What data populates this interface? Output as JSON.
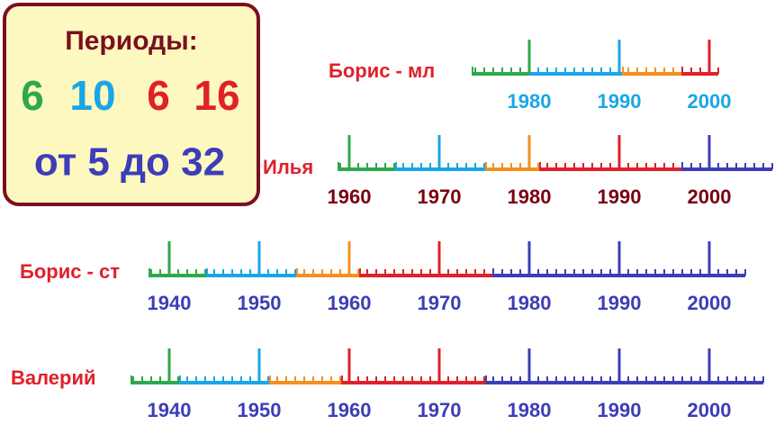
{
  "box": {
    "title": "Периоды:",
    "periods": [
      "6",
      "10",
      "6",
      "16"
    ],
    "range": "от 5 до 32"
  },
  "timelines": [
    {
      "name": "Борис - мл",
      "years": [
        1980,
        1990,
        2000
      ],
      "segments": [
        {
          "start": 1973.7,
          "end": 1980,
          "color": "#2ea84a"
        },
        {
          "start": 1980,
          "end": 1990.4,
          "color": "#1aa6e6"
        },
        {
          "start": 1990.4,
          "end": 1997,
          "color": "#f39020"
        },
        {
          "start": 1997,
          "end": 2001,
          "color": "#e0202a"
        }
      ]
    },
    {
      "name": "Илья",
      "years": [
        1960,
        1970,
        1980,
        1990,
        2000
      ],
      "segments": [
        {
          "start": 1958.8,
          "end": 1965.2,
          "color": "#2ea84a"
        },
        {
          "start": 1965.2,
          "end": 1975.2,
          "color": "#1aa6e6"
        },
        {
          "start": 1975.2,
          "end": 1981.2,
          "color": "#f39020"
        },
        {
          "start": 1981.2,
          "end": 1997,
          "color": "#e0202a"
        },
        {
          "start": 1997,
          "end": 2007,
          "color": "#3d3db8"
        }
      ]
    },
    {
      "name": "Борис - ст",
      "years": [
        1940,
        1950,
        1960,
        1970,
        1980,
        1990,
        2000
      ],
      "segments": [
        {
          "start": 1937.8,
          "end": 1944.2,
          "color": "#2ea84a"
        },
        {
          "start": 1944.2,
          "end": 1954.2,
          "color": "#1aa6e6"
        },
        {
          "start": 1954.2,
          "end": 1961.2,
          "color": "#f39020"
        },
        {
          "start": 1961.2,
          "end": 1976,
          "color": "#e0202a"
        },
        {
          "start": 1976,
          "end": 2004,
          "color": "#3d3db8"
        }
      ]
    },
    {
      "name": "Валерий",
      "years": [
        1940,
        1950,
        1960,
        1970,
        1980,
        1990,
        2000
      ],
      "segments": [
        {
          "start": 1935.8,
          "end": 1941.2,
          "color": "#2ea84a"
        },
        {
          "start": 1941.2,
          "end": 1951.2,
          "color": "#1aa6e6"
        },
        {
          "start": 1951.2,
          "end": 1959.2,
          "color": "#f39020"
        },
        {
          "start": 1959.2,
          "end": 1975.2,
          "color": "#e0202a"
        },
        {
          "start": 1975.2,
          "end": 2006,
          "color": "#3d3db8"
        }
      ]
    }
  ]
}
